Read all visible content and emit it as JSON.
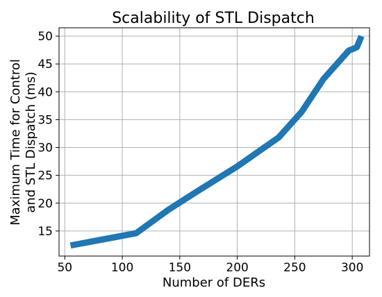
{
  "chart_data": {
    "type": "line",
    "title": "Scalability of STL Dispatch",
    "xlabel": "Number of DERs",
    "ylabel_lines": [
      "Maximum Time for Control",
      "and STL Dispatch (ms)"
    ],
    "xlim": [
      45,
      315
    ],
    "ylim": [
      10.5,
      51.5
    ],
    "xticks": [
      50,
      100,
      150,
      200,
      250,
      300
    ],
    "yticks": [
      15,
      20,
      25,
      30,
      35,
      40,
      45,
      50
    ],
    "grid": true,
    "series": [
      {
        "color": "#1f77b4",
        "x": [
          55,
          112,
          140,
          165,
          200,
          236,
          256,
          275,
          297,
          304,
          308
        ],
        "y": [
          12.4,
          14.6,
          18.8,
          22.1,
          26.6,
          31.8,
          36.4,
          42.3,
          47.4,
          48.0,
          50.0
        ]
      }
    ]
  }
}
